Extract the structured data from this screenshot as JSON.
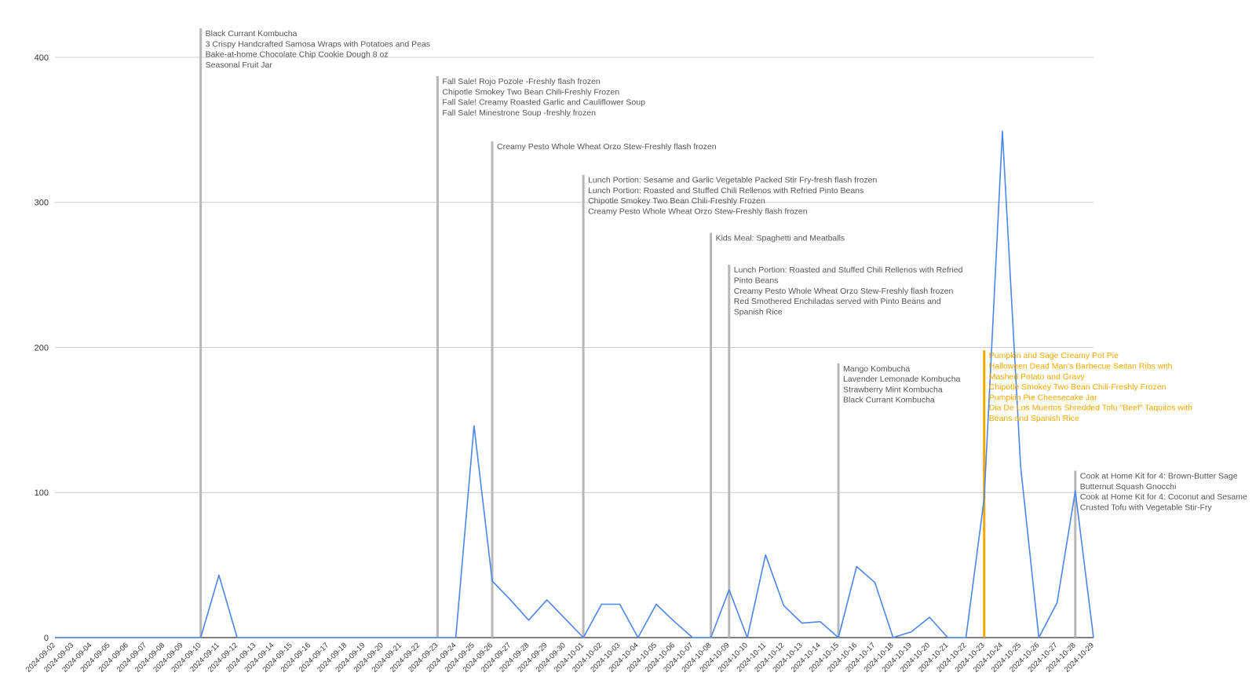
{
  "chart_data": {
    "type": "line",
    "x": [
      "2024-09-02",
      "2024-09-03",
      "2024-09-04",
      "2024-09-05",
      "2024-09-06",
      "2024-09-07",
      "2024-09-08",
      "2024-09-09",
      "2024-09-10",
      "2024-09-11",
      "2024-09-12",
      "2024-09-13",
      "2024-09-14",
      "2024-09-15",
      "2024-09-16",
      "2024-09-17",
      "2024-09-18",
      "2024-09-19",
      "2024-09-20",
      "2024-09-21",
      "2024-09-22",
      "2024-09-23",
      "2024-09-24",
      "2024-09-25",
      "2024-09-26",
      "2024-09-27",
      "2024-09-28",
      "2024-09-29",
      "2024-09-30",
      "2024-10-01",
      "2024-10-02",
      "2024-10-03",
      "2024-10-04",
      "2024-10-05",
      "2024-10-06",
      "2024-10-07",
      "2024-10-08",
      "2024-10-09",
      "2024-10-10",
      "2024-10-11",
      "2024-10-12",
      "2024-10-13",
      "2024-10-14",
      "2024-10-15",
      "2024-10-16",
      "2024-10-17",
      "2024-10-18",
      "2024-10-19",
      "2024-10-20",
      "2024-10-21",
      "2024-10-22",
      "2024-10-23",
      "2024-10-24",
      "2024-10-25",
      "2024-10-26",
      "2024-10-27",
      "2024-10-28",
      "2024-10-29"
    ],
    "series": [
      {
        "color": "#4a86e8",
        "values": [
          0,
          0,
          0,
          0,
          0,
          0,
          0,
          0,
          0,
          43,
          0,
          0,
          0,
          0,
          0,
          0,
          0,
          0,
          0,
          0,
          0,
          0,
          0,
          146,
          39,
          26,
          12,
          26,
          13,
          0,
          23,
          23,
          0,
          23,
          11,
          0,
          0,
          33,
          0,
          57,
          22,
          10,
          11,
          0,
          49,
          38,
          0,
          4,
          14,
          0,
          0,
          96,
          349,
          118,
          0,
          24,
          101,
          0
        ]
      }
    ],
    "yticks": [
      0,
      100,
      200,
      300,
      400
    ],
    "ylim": [
      0,
      420
    ],
    "grid": true,
    "xlabel": "",
    "ylabel": "",
    "annotation_color": "#b7b7b7",
    "annotation_highlight_color": "#f4a700",
    "annotations": [
      {
        "date": "2024-09-10",
        "value": 420,
        "highlight": false,
        "lines": [
          "Black Currant Kombucha",
          "3 Crispy Handcrafted Samosa Wraps with Potatoes and Peas",
          "Bake-at-home Chocolate Chip Cookie Dough 8 oz",
          "Seasonal Fruit Jar"
        ]
      },
      {
        "date": "2024-09-23",
        "value": 387,
        "highlight": false,
        "lines": [
          "Fall Sale! Rojo Pozole -Freshly flash frozen",
          "Chipotle Smokey Two Bean Chili-Freshly Frozen",
          "Fall Sale! Creamy Roasted Garlic and Cauliflower Soup",
          "Fall Sale! Minestrone Soup -freshly frozen"
        ]
      },
      {
        "date": "2024-09-26",
        "value": 342,
        "highlight": false,
        "lines": [
          "Creamy Pesto Whole Wheat Orzo Stew-Freshly flash frozen"
        ]
      },
      {
        "date": "2024-10-01",
        "value": 319,
        "highlight": false,
        "lines": [
          "Lunch Portion: Sesame and Garlic Vegetable Packed Stir Fry-fresh flash frozen",
          "Lunch Portion: Roasted and Stuffed Chili Rellenos with Refried Pinto Beans",
          "Chipotle Smokey Two Bean Chili-Freshly Frozen",
          "Creamy Pesto Whole Wheat Orzo Stew-Freshly flash frozen"
        ]
      },
      {
        "date": "2024-10-08",
        "value": 279,
        "highlight": false,
        "lines": [
          "Kids Meal: Spaghetti and Meatballs"
        ]
      },
      {
        "date": "2024-10-09",
        "value": 257,
        "highlight": false,
        "lines": [
          "Lunch Portion: Roasted and Stuffed Chili Rellenos with Refried",
          "Pinto Beans",
          "Creamy Pesto Whole Wheat Orzo Stew-Freshly flash frozen",
          "Red Smothered Enchiladas served with Pinto Beans and",
          "Spanish Rice"
        ]
      },
      {
        "date": "2024-10-15",
        "value": 189,
        "highlight": false,
        "lines": [
          "Mango Kombucha",
          "Lavender Lemonade Kombucha",
          "Strawberry Mint Kombucha",
          "Black Currant Kombucha"
        ]
      },
      {
        "date": "2024-10-23",
        "value": 198,
        "highlight": true,
        "lines": [
          "Pumpkin and Sage Creamy Pot Pie",
          "Halloween Dead Man's Barbecue Seitan Ribs with",
          "Mashed Potato and Gravy",
          "Chipotle Smokey Two Bean Chili-Freshly Frozen",
          "Pumpkin Pie Cheesecake Jar",
          "Dia De Los Muertos Shredded Tofu \"Beef\" Taquitos with",
          "Beans and Spanish Rice"
        ]
      },
      {
        "date": "2024-10-28",
        "value": 115,
        "highlight": false,
        "lines": [
          "Cook at Home Kit for 4: Brown-Butter Sage",
          "Butternut Squash Gnocchi",
          "Cook at Home Kit for 4: Coconut and Sesame",
          "Crusted Tofu with Vegetable Stir-Fry"
        ]
      }
    ]
  }
}
